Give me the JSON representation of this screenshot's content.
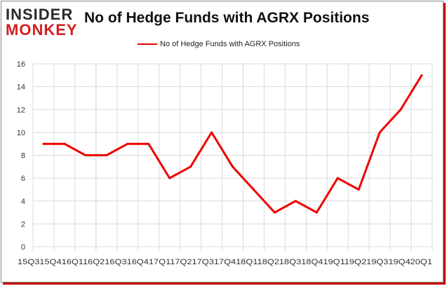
{
  "header": {
    "logo_top": "INSIDER",
    "logo_bottom": "MONKEY",
    "title": "No of Hedge Funds with AGRX Positions"
  },
  "colors": {
    "line": "#ee0000",
    "grid": "#d9d9d9",
    "axis_text": "#333333",
    "logo_dark": "#2a2a2a",
    "logo_red": "#d21f1f"
  },
  "chart_data": {
    "type": "line",
    "title": "No of Hedge Funds with AGRX Positions",
    "xlabel": "",
    "ylabel": "",
    "legend_position": "top-center",
    "grid": true,
    "ylim": [
      0,
      16
    ],
    "yticks": [
      0,
      2,
      4,
      6,
      8,
      10,
      12,
      14,
      16
    ],
    "x_tick_text": "15Q315Q416Q116Q216Q316Q417Q117Q217Q317Q418Q118Q218Q318Q419Q119Q219Q319Q420Q1",
    "categories": [
      "15Q3",
      "15Q4",
      "16Q1",
      "16Q2",
      "16Q3",
      "16Q4",
      "17Q1",
      "17Q2",
      "17Q3",
      "17Q4",
      "18Q1",
      "18Q2",
      "18Q3",
      "18Q4",
      "19Q1",
      "19Q2",
      "19Q3",
      "19Q4",
      "20Q1"
    ],
    "series": [
      {
        "name": "No of Hedge Funds with AGRX Positions",
        "values": [
          9,
          9,
          8,
          8,
          9,
          9,
          6,
          7,
          10,
          7,
          5,
          3,
          4,
          3,
          6,
          5,
          10,
          12,
          15
        ]
      }
    ]
  }
}
